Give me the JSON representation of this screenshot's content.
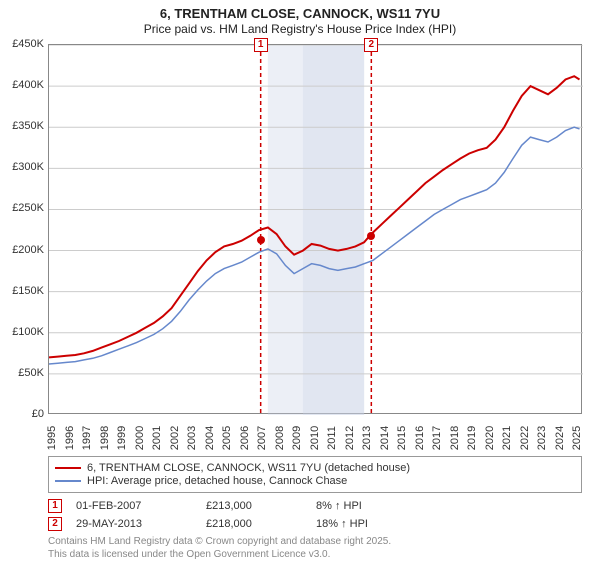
{
  "title": {
    "main": "6, TRENTHAM CLOSE, CANNOCK, WS11 7YU",
    "sub": "Price paid vs. HM Land Registry's House Price Index (HPI)"
  },
  "chart": {
    "type": "line",
    "ylim": [
      0,
      450000
    ],
    "ytick_step": 50000,
    "y_ticks": [
      "£0",
      "£50K",
      "£100K",
      "£150K",
      "£200K",
      "£250K",
      "£300K",
      "£350K",
      "£400K",
      "£450K"
    ],
    "x_years": [
      "1995",
      "1996",
      "1997",
      "1998",
      "1999",
      "2000",
      "2001",
      "2002",
      "2003",
      "2004",
      "2005",
      "2006",
      "2007",
      "2008",
      "2009",
      "2010",
      "2011",
      "2012",
      "2013",
      "2014",
      "2015",
      "2016",
      "2017",
      "2018",
      "2019",
      "2020",
      "2021",
      "2022",
      "2023",
      "2024",
      "2025"
    ],
    "x_range": [
      1995,
      2025.5
    ],
    "grid_color": "#cccccc",
    "background_color": "#ffffff",
    "series": {
      "property": {
        "label": "6, TRENTHAM CLOSE, CANNOCK, WS11 7YU (detached house)",
        "color": "#cc0000",
        "line_width": 2,
        "data": [
          [
            1995.0,
            70000
          ],
          [
            1995.5,
            71000
          ],
          [
            1996.0,
            72000
          ],
          [
            1996.5,
            73000
          ],
          [
            1997.0,
            75000
          ],
          [
            1997.5,
            78000
          ],
          [
            1998.0,
            82000
          ],
          [
            1998.5,
            86000
          ],
          [
            1999.0,
            90000
          ],
          [
            1999.5,
            95000
          ],
          [
            2000.0,
            100000
          ],
          [
            2000.5,
            106000
          ],
          [
            2001.0,
            112000
          ],
          [
            2001.5,
            120000
          ],
          [
            2002.0,
            130000
          ],
          [
            2002.5,
            145000
          ],
          [
            2003.0,
            160000
          ],
          [
            2003.5,
            175000
          ],
          [
            2004.0,
            188000
          ],
          [
            2004.5,
            198000
          ],
          [
            2005.0,
            205000
          ],
          [
            2005.5,
            208000
          ],
          [
            2006.0,
            212000
          ],
          [
            2006.5,
            218000
          ],
          [
            2007.0,
            225000
          ],
          [
            2007.5,
            228000
          ],
          [
            2008.0,
            220000
          ],
          [
            2008.5,
            205000
          ],
          [
            2009.0,
            195000
          ],
          [
            2009.5,
            200000
          ],
          [
            2010.0,
            208000
          ],
          [
            2010.5,
            206000
          ],
          [
            2011.0,
            202000
          ],
          [
            2011.5,
            200000
          ],
          [
            2012.0,
            202000
          ],
          [
            2012.5,
            205000
          ],
          [
            2013.0,
            210000
          ],
          [
            2013.4,
            220000
          ],
          [
            2013.5,
            222000
          ],
          [
            2014.0,
            232000
          ],
          [
            2014.5,
            242000
          ],
          [
            2015.0,
            252000
          ],
          [
            2015.5,
            262000
          ],
          [
            2016.0,
            272000
          ],
          [
            2016.5,
            282000
          ],
          [
            2017.0,
            290000
          ],
          [
            2017.5,
            298000
          ],
          [
            2018.0,
            305000
          ],
          [
            2018.5,
            312000
          ],
          [
            2019.0,
            318000
          ],
          [
            2019.5,
            322000
          ],
          [
            2020.0,
            325000
          ],
          [
            2020.5,
            335000
          ],
          [
            2021.0,
            350000
          ],
          [
            2021.5,
            370000
          ],
          [
            2022.0,
            388000
          ],
          [
            2022.5,
            400000
          ],
          [
            2023.0,
            395000
          ],
          [
            2023.5,
            390000
          ],
          [
            2024.0,
            398000
          ],
          [
            2024.5,
            408000
          ],
          [
            2025.0,
            412000
          ],
          [
            2025.3,
            408000
          ]
        ]
      },
      "hpi": {
        "label": "HPI: Average price, detached house, Cannock Chase",
        "color": "#6688cc",
        "line_width": 1.5,
        "data": [
          [
            1995.0,
            62000
          ],
          [
            1995.5,
            63000
          ],
          [
            1996.0,
            64000
          ],
          [
            1996.5,
            65000
          ],
          [
            1997.0,
            67000
          ],
          [
            1997.5,
            69000
          ],
          [
            1998.0,
            72000
          ],
          [
            1998.5,
            76000
          ],
          [
            1999.0,
            80000
          ],
          [
            1999.5,
            84000
          ],
          [
            2000.0,
            88000
          ],
          [
            2000.5,
            93000
          ],
          [
            2001.0,
            98000
          ],
          [
            2001.5,
            105000
          ],
          [
            2002.0,
            114000
          ],
          [
            2002.5,
            126000
          ],
          [
            2003.0,
            140000
          ],
          [
            2003.5,
            152000
          ],
          [
            2004.0,
            163000
          ],
          [
            2004.5,
            172000
          ],
          [
            2005.0,
            178000
          ],
          [
            2005.5,
            182000
          ],
          [
            2006.0,
            186000
          ],
          [
            2006.5,
            192000
          ],
          [
            2007.0,
            198000
          ],
          [
            2007.5,
            202000
          ],
          [
            2008.0,
            196000
          ],
          [
            2008.5,
            182000
          ],
          [
            2009.0,
            172000
          ],
          [
            2009.5,
            178000
          ],
          [
            2010.0,
            184000
          ],
          [
            2010.5,
            182000
          ],
          [
            2011.0,
            178000
          ],
          [
            2011.5,
            176000
          ],
          [
            2012.0,
            178000
          ],
          [
            2012.5,
            180000
          ],
          [
            2013.0,
            184000
          ],
          [
            2013.5,
            188000
          ],
          [
            2014.0,
            196000
          ],
          [
            2014.5,
            204000
          ],
          [
            2015.0,
            212000
          ],
          [
            2015.5,
            220000
          ],
          [
            2016.0,
            228000
          ],
          [
            2016.5,
            236000
          ],
          [
            2017.0,
            244000
          ],
          [
            2017.5,
            250000
          ],
          [
            2018.0,
            256000
          ],
          [
            2018.5,
            262000
          ],
          [
            2019.0,
            266000
          ],
          [
            2019.5,
            270000
          ],
          [
            2020.0,
            274000
          ],
          [
            2020.5,
            282000
          ],
          [
            2021.0,
            295000
          ],
          [
            2021.5,
            312000
          ],
          [
            2022.0,
            328000
          ],
          [
            2022.5,
            338000
          ],
          [
            2023.0,
            335000
          ],
          [
            2023.5,
            332000
          ],
          [
            2024.0,
            338000
          ],
          [
            2024.5,
            346000
          ],
          [
            2025.0,
            350000
          ],
          [
            2025.3,
            348000
          ]
        ]
      }
    },
    "bands": [
      {
        "from": 2007.5,
        "to": 2009.5,
        "opacity": 0.35
      },
      {
        "from": 2009.5,
        "to": 2013.0,
        "opacity": 0.55
      }
    ],
    "markers": [
      {
        "id": "1",
        "x": 2007.09,
        "color": "#cc0000"
      },
      {
        "id": "2",
        "x": 2013.41,
        "color": "#cc0000"
      }
    ],
    "points": [
      {
        "x": 2007.09,
        "y": 213000,
        "color": "#cc0000"
      },
      {
        "x": 2013.41,
        "y": 218000,
        "color": "#cc0000"
      }
    ]
  },
  "legend": {
    "series1": "6, TRENTHAM CLOSE, CANNOCK, WS11 7YU (detached house)",
    "series2": "HPI: Average price, detached house, Cannock Chase"
  },
  "data_rows": [
    {
      "id": "1",
      "color": "#cc0000",
      "date": "01-FEB-2007",
      "price": "£213,000",
      "pct": "8% ↑ HPI"
    },
    {
      "id": "2",
      "color": "#cc0000",
      "date": "29-MAY-2013",
      "price": "£218,000",
      "pct": "18% ↑ HPI"
    }
  ],
  "footnote": {
    "line1": "Contains HM Land Registry data © Crown copyright and database right 2025.",
    "line2": "This data is licensed under the Open Government Licence v3.0."
  }
}
